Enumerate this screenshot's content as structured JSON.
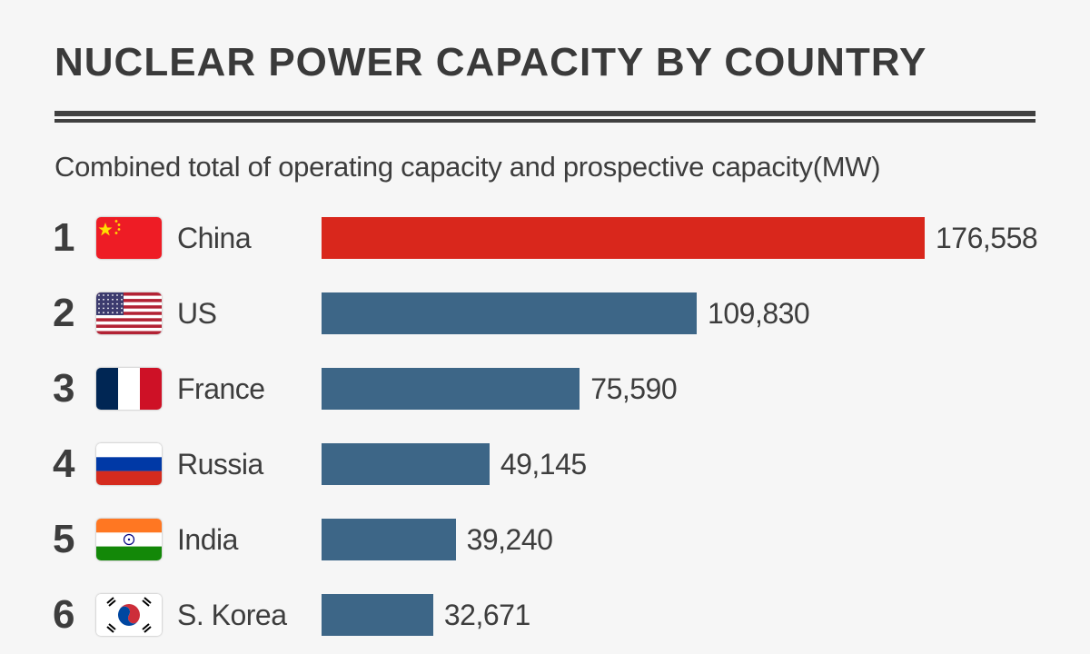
{
  "chart_data": {
    "type": "bar",
    "orientation": "horizontal",
    "title": "NUCLEAR POWER CAPACITY BY COUNTRY",
    "subtitle": "Combined total of operating capacity and prospective capacity(MW)",
    "categories": [
      "China",
      "US",
      "France",
      "Russia",
      "India",
      "S. Korea"
    ],
    "ranks": [
      "1",
      "2",
      "3",
      "4",
      "5",
      "6"
    ],
    "values": [
      176558,
      109830,
      75590,
      49145,
      39240,
      32671
    ],
    "value_labels": [
      "176,558",
      "109,830",
      "75,590",
      "49,145",
      "39,240",
      "32,671"
    ],
    "flags": [
      "china-flag",
      "us-flag",
      "france-flag",
      "russia-flag",
      "india-flag",
      "south-korea-flag"
    ],
    "colors": {
      "highlight": "#d9271c",
      "default": "#3d6687"
    },
    "grid": false
  }
}
